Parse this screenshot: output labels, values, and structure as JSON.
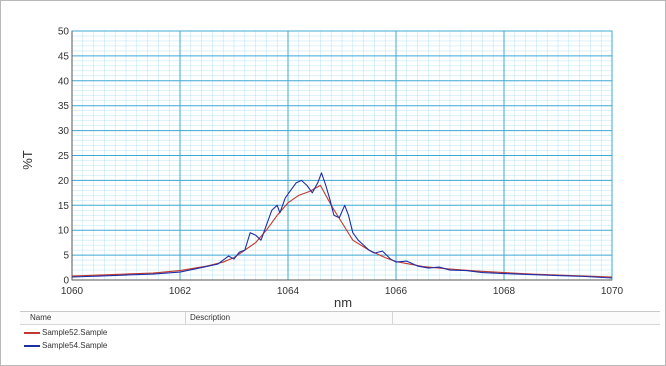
{
  "chart_data": {
    "type": "line",
    "title": "",
    "xlabel": "nm",
    "ylabel": "%T",
    "xlim": [
      1060,
      1070
    ],
    "ylim": [
      0,
      50
    ],
    "x_ticks": [
      1060,
      1062,
      1064,
      1066,
      1068,
      1070
    ],
    "y_ticks": [
      0,
      5,
      10,
      15,
      20,
      25,
      30,
      35,
      40,
      45,
      50
    ],
    "grid": true,
    "grid_color": "#7fd0ec",
    "legend_position": "bottom table",
    "series": [
      {
        "name": "Sample52.Sample",
        "color": "#c0392b",
        "points": [
          [
            1060.0,
            0.8
          ],
          [
            1060.5,
            1.0
          ],
          [
            1061.0,
            1.2
          ],
          [
            1061.5,
            1.4
          ],
          [
            1062.0,
            1.9
          ],
          [
            1062.5,
            2.8
          ],
          [
            1062.8,
            3.6
          ],
          [
            1063.0,
            4.5
          ],
          [
            1063.2,
            6.0
          ],
          [
            1063.4,
            7.5
          ],
          [
            1063.6,
            10.0
          ],
          [
            1063.8,
            13.0
          ],
          [
            1064.0,
            15.5
          ],
          [
            1064.2,
            17.0
          ],
          [
            1064.4,
            17.8
          ],
          [
            1064.6,
            19.0
          ],
          [
            1064.8,
            15.0
          ],
          [
            1065.0,
            11.5
          ],
          [
            1065.2,
            8.0
          ],
          [
            1065.5,
            6.0
          ],
          [
            1065.8,
            4.5
          ],
          [
            1066.0,
            3.7
          ],
          [
            1066.5,
            2.7
          ],
          [
            1067.0,
            2.2
          ],
          [
            1067.5,
            1.8
          ],
          [
            1068.0,
            1.5
          ],
          [
            1068.5,
            1.2
          ],
          [
            1069.0,
            1.0
          ],
          [
            1069.5,
            0.8
          ],
          [
            1070.0,
            0.6
          ]
        ]
      },
      {
        "name": "Sample54.Sample",
        "color": "#1f2fa8",
        "points": [
          [
            1060.0,
            0.6
          ],
          [
            1060.5,
            0.8
          ],
          [
            1061.0,
            1.0
          ],
          [
            1061.5,
            1.2
          ],
          [
            1062.0,
            1.6
          ],
          [
            1062.4,
            2.5
          ],
          [
            1062.7,
            3.2
          ],
          [
            1062.9,
            4.8
          ],
          [
            1063.0,
            4.2
          ],
          [
            1063.1,
            5.6
          ],
          [
            1063.2,
            6.0
          ],
          [
            1063.3,
            9.5
          ],
          [
            1063.4,
            9.0
          ],
          [
            1063.5,
            8.0
          ],
          [
            1063.6,
            11.0
          ],
          [
            1063.7,
            14.0
          ],
          [
            1063.8,
            15.0
          ],
          [
            1063.85,
            13.5
          ],
          [
            1063.95,
            16.5
          ],
          [
            1064.05,
            18.0
          ],
          [
            1064.15,
            19.5
          ],
          [
            1064.25,
            20.0
          ],
          [
            1064.35,
            19.0
          ],
          [
            1064.45,
            17.5
          ],
          [
            1064.55,
            19.5
          ],
          [
            1064.62,
            21.5
          ],
          [
            1064.7,
            19.0
          ],
          [
            1064.78,
            16.0
          ],
          [
            1064.85,
            13.0
          ],
          [
            1064.95,
            12.5
          ],
          [
            1065.05,
            15.0
          ],
          [
            1065.12,
            13.0
          ],
          [
            1065.2,
            9.5
          ],
          [
            1065.3,
            8.0
          ],
          [
            1065.4,
            7.0
          ],
          [
            1065.5,
            6.0
          ],
          [
            1065.6,
            5.4
          ],
          [
            1065.75,
            5.8
          ],
          [
            1065.9,
            4.2
          ],
          [
            1066.0,
            3.6
          ],
          [
            1066.2,
            3.8
          ],
          [
            1066.4,
            2.8
          ],
          [
            1066.6,
            2.4
          ],
          [
            1066.8,
            2.6
          ],
          [
            1067.0,
            2.0
          ],
          [
            1067.3,
            1.9
          ],
          [
            1067.6,
            1.5
          ],
          [
            1068.0,
            1.3
          ],
          [
            1068.5,
            1.1
          ],
          [
            1069.0,
            0.9
          ],
          [
            1069.5,
            0.7
          ],
          [
            1070.0,
            0.4
          ]
        ]
      }
    ]
  },
  "legend_table": {
    "name_header": "Name",
    "description_header": "Description"
  }
}
